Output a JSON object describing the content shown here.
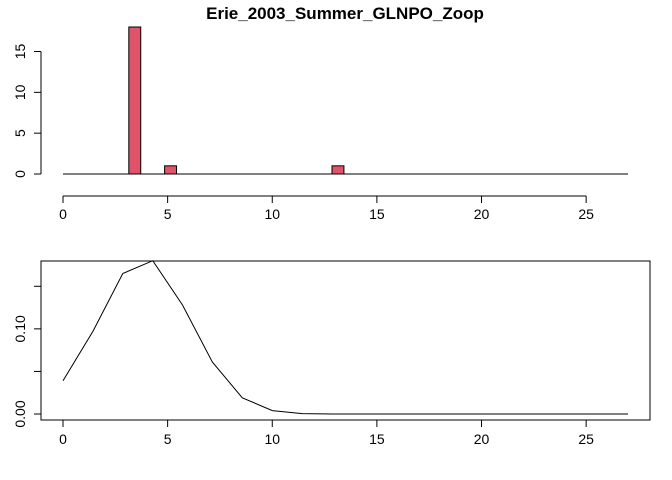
{
  "chart_data": [
    {
      "type": "bar",
      "title": "Erie_2003_Summer_GLNPO_Zoop",
      "xlabel": "",
      "ylabel": "",
      "xlim": [
        0,
        27
      ],
      "ylim": [
        0,
        18
      ],
      "x_ticks": [
        0,
        5,
        10,
        15,
        20,
        25
      ],
      "y_ticks": [
        0,
        5,
        10,
        15
      ],
      "bar_width": 0.57,
      "bar_color": "#DF536B",
      "baseline": true,
      "bars": [
        {
          "x": 3.43,
          "value": 18
        },
        {
          "x": 5.14,
          "value": 1
        },
        {
          "x": 13.14,
          "value": 1
        }
      ],
      "grid": false,
      "box": false
    },
    {
      "type": "line",
      "title": "",
      "xlabel": "",
      "ylabel": "",
      "xlim": [
        0,
        27
      ],
      "ylim": [
        0,
        0.175
      ],
      "x_ticks": [
        0,
        5,
        10,
        15,
        20,
        25
      ],
      "y_ticks": [
        0.0,
        0.1
      ],
      "y_tick_labels": [
        "0.00",
        "0.10"
      ],
      "line_color": "#000000",
      "x": [
        0,
        1.43,
        2.86,
        4.29,
        5.71,
        7.14,
        8.57,
        10.0,
        11.43,
        12.86,
        14.29,
        15.71,
        17.14,
        18.57,
        20.0,
        21.43,
        22.86,
        24.29,
        25.71,
        27.0
      ],
      "values": [
        0.039,
        0.097,
        0.165,
        0.18,
        0.128,
        0.061,
        0.019,
        0.004,
        0.0005,
        0,
        0,
        0,
        0,
        0,
        0,
        0,
        0,
        0,
        0,
        0
      ],
      "grid": false,
      "box": true
    }
  ]
}
